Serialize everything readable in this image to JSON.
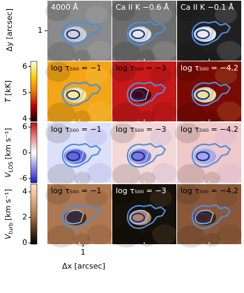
{
  "y_axis": {
    "label": "Δy [arcsec]",
    "lim": [
      0,
      2
    ],
    "ticks": [
      1
    ]
  },
  "x_axis": {
    "label": "Δx [arcsec]",
    "lim": [
      0,
      1.8
    ],
    "ticks": [
      1
    ]
  },
  "rows": [
    {
      "titles": [
        "4000 Å",
        "Ca II K −0.6 Å",
        "Ca II K −0.1 Å"
      ]
    },
    {
      "titles": [
        "log τ₅₀₀ = −1",
        "log τ₅₀₀ = −3",
        "log τ₅₀₀ = −4.2"
      ],
      "colorbar": {
        "symbol": "T",
        "unit": "[kK]",
        "lim": [
          3.9,
          6.2
        ],
        "ticks": [
          4,
          5,
          6
        ],
        "colors": [
          "#1a0000",
          "#b80000",
          "#f07a00",
          "#ffd000",
          "#ffffe0"
        ]
      }
    },
    {
      "titles": [
        "log τ₅₀₀ = −1",
        "log τ₅₀₀ = −3",
        "log τ₅₀₀ = −4.2"
      ],
      "colorbar": {
        "symbol": "V",
        "subscript": "LOS",
        "unit": "[km s⁻¹]",
        "lim": [
          -7,
          7
        ],
        "ticks": [
          -6,
          0,
          6
        ],
        "colors": [
          "#1c1cc8",
          "#8a8ae8",
          "#ffffff",
          "#e88a8a",
          "#c01010"
        ]
      }
    },
    {
      "titles": [
        "log τ₅₀₀ = −1",
        "log τ₅₀₀ = −3",
        "log τ₅₀₀ = −4.2"
      ],
      "colorbar": {
        "symbol": "V",
        "subscript": "turb",
        "unit": "[km s⁻¹]",
        "lim": [
          -0.1,
          4.6
        ],
        "ticks": [
          0,
          2,
          4
        ],
        "colors": [
          "#000000",
          "#5a3a22",
          "#b07a50",
          "#e0b088",
          "#ffe0c0"
        ]
      }
    }
  ]
}
